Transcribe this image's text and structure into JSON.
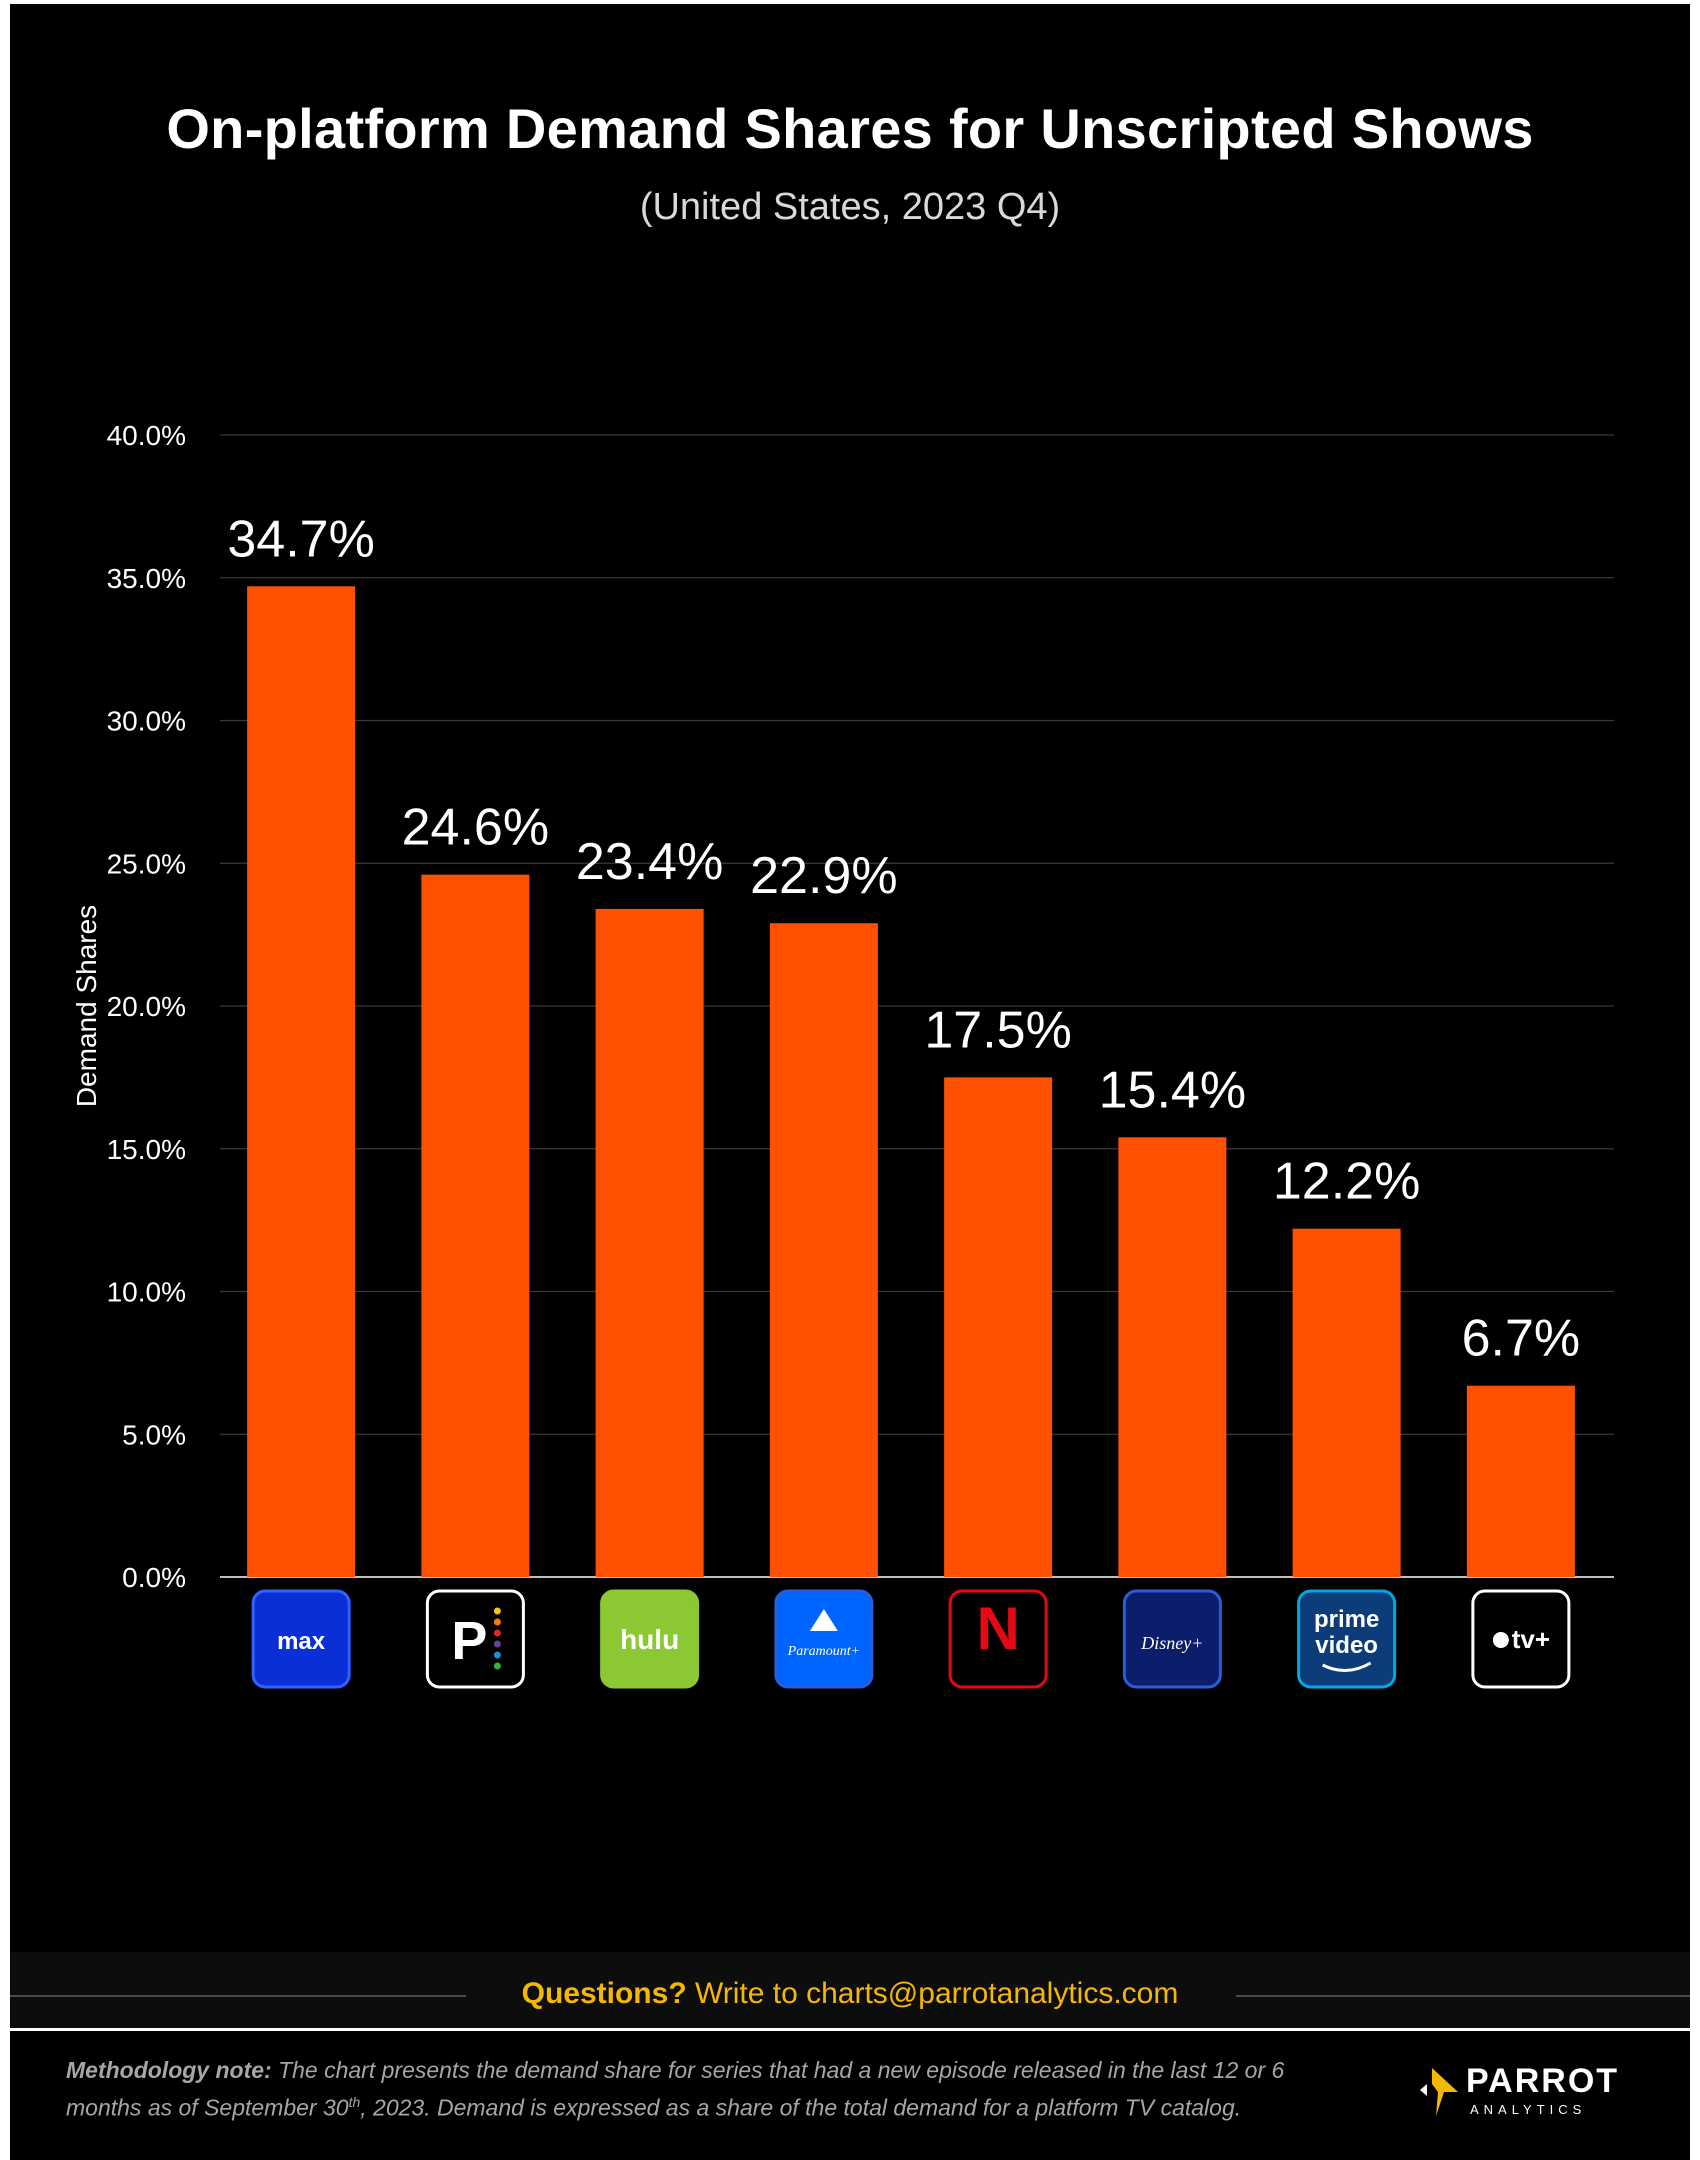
{
  "chart_data": {
    "type": "bar",
    "title": "On-platform Demand Shares for Unscripted Shows",
    "subtitle": "(United States, 2023 Q4)",
    "xlabel": "",
    "ylabel": "Demand Shares",
    "ylim": [
      0,
      40
    ],
    "yticks": [
      "0.0%",
      "5.0%",
      "10.0%",
      "15.0%",
      "20.0%",
      "25.0%",
      "30.0%",
      "35.0%",
      "40.0%"
    ],
    "grid": true,
    "categories": [
      "max",
      "Peacock",
      "hulu",
      "Paramount+",
      "Netflix",
      "Disney+",
      "prime video",
      "Apple TV+"
    ],
    "values": [
      34.7,
      24.6,
      23.4,
      22.9,
      17.5,
      15.4,
      12.2,
      6.7
    ],
    "data_labels": [
      "34.7%",
      "24.6%",
      "23.4%",
      "22.9%",
      "17.5%",
      "15.4%",
      "12.2%",
      "6.7%"
    ],
    "bar_color": "#ff5100",
    "logos": [
      {
        "icon": "max-logo-icon",
        "text": "max",
        "bg": "#0a2fd6",
        "border": "#2f63ff",
        "color": "#ffffff"
      },
      {
        "icon": "peacock-logo-icon",
        "text": "P",
        "bg": "#000000",
        "border": "#ffffff",
        "color": "#ffffff"
      },
      {
        "icon": "hulu-logo-icon",
        "text": "hulu",
        "bg": "#8bc833",
        "border": "#8bc833",
        "color": "#ffffff"
      },
      {
        "icon": "paramount-plus-logo-icon",
        "text": "Paramount+",
        "bg": "#0064ff",
        "border": "#2b5cd9",
        "color": "#ffffff"
      },
      {
        "icon": "netflix-logo-icon",
        "text": "N",
        "bg": "#000000",
        "border": "#e50914",
        "color": "#e50914"
      },
      {
        "icon": "disney-plus-logo-icon",
        "text": "Disney+",
        "bg": "#0c1d6b",
        "border": "#2b5cd9",
        "color": "#ffffff"
      },
      {
        "icon": "prime-video-logo-icon",
        "text": "prime video",
        "bg": "#0c3d7a",
        "border": "#00a8e1",
        "color": "#ffffff"
      },
      {
        "icon": "apple-tv-plus-logo-icon",
        "text": "tv+",
        "bg": "#000000",
        "border": "#ffffff",
        "color": "#ffffff"
      }
    ]
  },
  "footer": {
    "questions_bold": "Questions?",
    "questions_text": " Write to charts@parrotanalytics.com"
  },
  "methodology": {
    "label": "Methodology note:",
    "text_1": " The chart presents the demand share for series that had a new episode released in the last 12 or 6 months as of September 30",
    "sup": "th",
    "text_2": ", 2023. Demand is expressed as a share of the total demand for a platform TV catalog."
  },
  "brand": {
    "name": "PARROT",
    "sub": "ANALYTICS",
    "color": "#f5b800"
  }
}
